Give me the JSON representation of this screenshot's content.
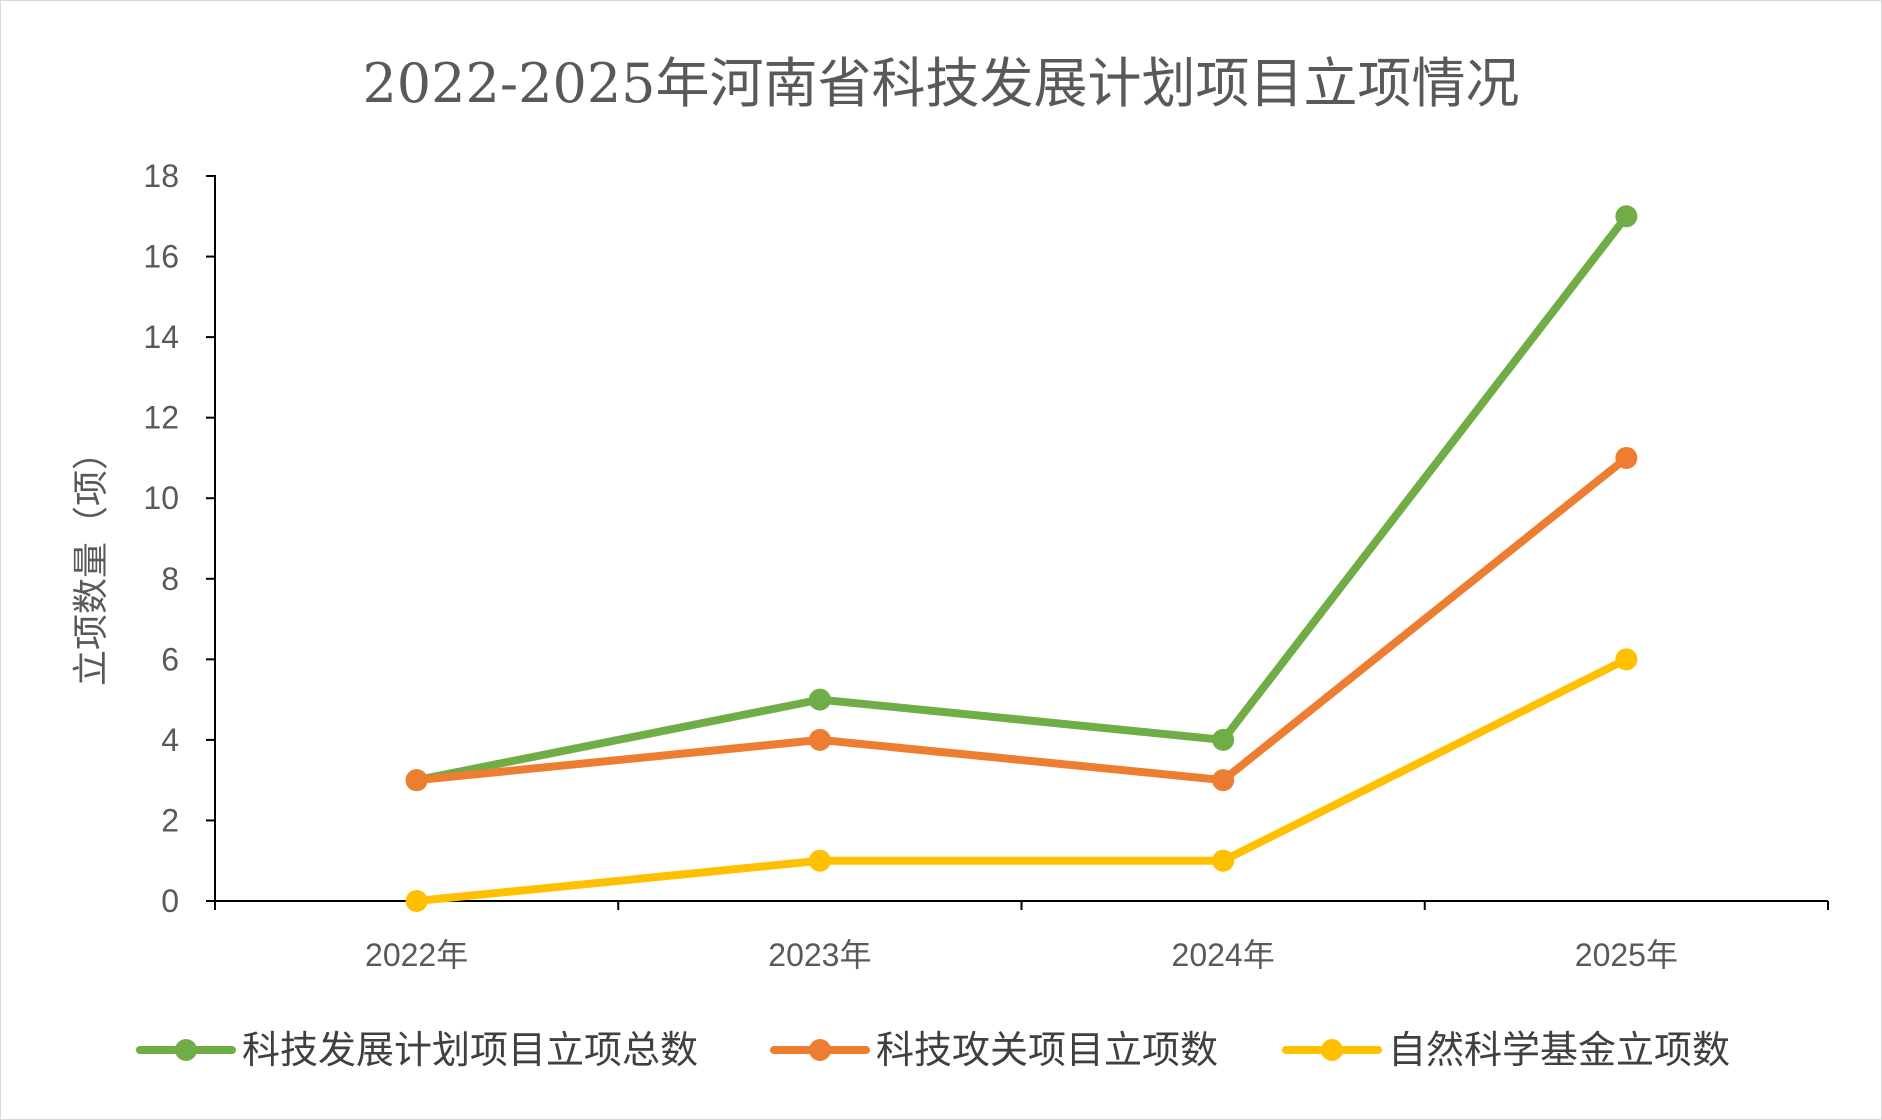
{
  "chart_data": {
    "type": "line",
    "title": "2022-2025年河南省科技发展计划项目立项情况",
    "xlabel": "",
    "ylabel": "立项数量（项）",
    "categories": [
      "2022年",
      "2023年",
      "2024年",
      "2025年"
    ],
    "ylim": [
      0,
      18
    ],
    "yticks": [
      0,
      2,
      4,
      6,
      8,
      10,
      12,
      14,
      16,
      18
    ],
    "grid": false,
    "legend_position": "bottom",
    "series": [
      {
        "name": "科技发展计划项目立项总数",
        "color": "#70ad47",
        "values": [
          3,
          5,
          4,
          17
        ]
      },
      {
        "name": "科技攻关项目立项数",
        "color": "#ed7d31",
        "values": [
          3,
          4,
          3,
          11
        ]
      },
      {
        "name": "自然科学基金立项数",
        "color": "#ffc000",
        "values": [
          0,
          1,
          1,
          6
        ]
      }
    ]
  }
}
